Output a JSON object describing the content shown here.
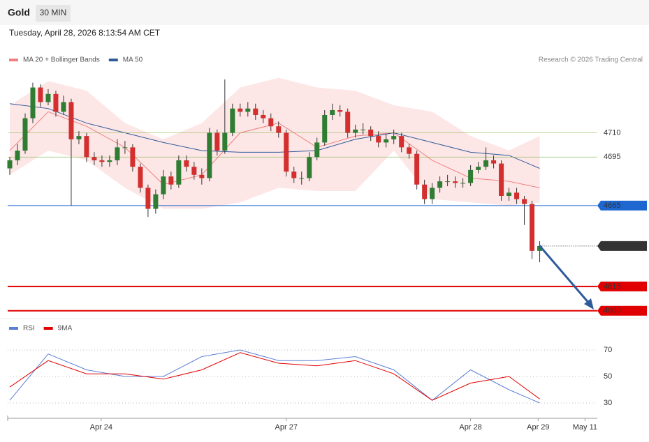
{
  "header": {
    "symbol": "Gold",
    "interval": "30 MIN",
    "timestamp": "Tuesday, April 28, 2026 8:13:54 AM CET",
    "credit": "Research © 2026 Trading Central"
  },
  "chart_data": [
    {
      "type": "candlestick",
      "legend": [
        {
          "name": "MA 20 + Bollinger Bands",
          "color": "#f08080"
        },
        {
          "name": "MA 50",
          "color": "#2f5b9a"
        }
      ],
      "x": [
        0,
        1,
        2,
        3,
        4,
        5,
        6,
        7,
        8,
        9,
        10,
        11,
        12,
        13,
        14,
        15,
        16,
        17,
        18,
        19,
        20,
        21,
        22,
        23,
        24,
        25,
        26,
        27,
        28,
        29,
        30,
        31,
        32,
        33,
        34,
        35,
        36,
        37,
        38,
        39,
        40,
        41,
        42,
        43,
        44,
        45,
        46,
        47,
        48,
        49,
        50,
        51,
        52,
        53,
        54,
        55,
        56,
        57,
        58,
        59,
        60,
        61,
        62,
        63,
        64,
        65,
        66,
        67,
        68,
        69
      ],
      "open": [
        4688,
        4693,
        4699,
        4719,
        4738,
        4729,
        4734,
        4723,
        4729,
        4706,
        4708,
        4695,
        4693,
        4692,
        4693,
        4701,
        4701,
        4689,
        4676,
        4663,
        4672,
        4683,
        4678,
        4693,
        4689,
        4684,
        4682,
        4710,
        4699,
        4710,
        4725,
        4723,
        4725,
        4721,
        4719,
        4714,
        4710,
        4686,
        4682,
        4682,
        4695,
        4704,
        4721,
        4724,
        4723,
        4710,
        4712,
        4712,
        4708,
        4704,
        4706,
        4708,
        4701,
        4697,
        4678,
        4669,
        4676,
        4680,
        4680,
        4679,
        4679,
        4687,
        4689,
        4693,
        4691,
        4671,
        4673,
        4669,
        4666,
        4637
      ],
      "high": [
        4695,
        4703,
        4722,
        4741,
        4740,
        4737,
        4736,
        4733,
        4731,
        4711,
        4710,
        4698,
        4696,
        4696,
        4706,
        4705,
        4703,
        4691,
        4678,
        4675,
        4687,
        4686,
        4696,
        4696,
        4692,
        4688,
        4713,
        4712,
        4743,
        4728,
        4728,
        4729,
        4728,
        4724,
        4722,
        4717,
        4712,
        4689,
        4686,
        4698,
        4707,
        4724,
        4728,
        4727,
        4725,
        4715,
        4716,
        4714,
        4711,
        4709,
        4712,
        4710,
        4703,
        4699,
        4681,
        4679,
        4683,
        4684,
        4683,
        4682,
        4690,
        4692,
        4701,
        4696,
        4693,
        4676,
        4676,
        4671,
        4668,
        4643
      ],
      "low": [
        4684,
        4690,
        4697,
        4716,
        4726,
        4727,
        4720,
        4721,
        4665,
        4703,
        4692,
        4690,
        4689,
        4689,
        4690,
        4697,
        4686,
        4673,
        4658,
        4660,
        4669,
        4675,
        4676,
        4686,
        4681,
        4678,
        4680,
        4696,
        4697,
        4708,
        4720,
        4720,
        4718,
        4716,
        4711,
        4707,
        4683,
        4679,
        4678,
        4680,
        4693,
        4702,
        4718,
        4720,
        4707,
        4707,
        4709,
        4705,
        4701,
        4701,
        4703,
        4698,
        4694,
        4675,
        4666,
        4666,
        4673,
        4677,
        4676,
        4676,
        4677,
        4685,
        4687,
        4688,
        4668,
        4668,
        4666,
        4653,
        4632,
        4630
      ],
      "close": [
        4693,
        4699,
        4719,
        4738,
        4729,
        4734,
        4723,
        4729,
        4706,
        4708,
        4695,
        4693,
        4692,
        4693,
        4701,
        4701,
        4689,
        4676,
        4663,
        4672,
        4683,
        4678,
        4693,
        4689,
        4684,
        4682,
        4710,
        4699,
        4710,
        4725,
        4723,
        4725,
        4721,
        4719,
        4714,
        4710,
        4686,
        4682,
        4682,
        4695,
        4704,
        4721,
        4724,
        4723,
        4710,
        4712,
        4712,
        4708,
        4704,
        4706,
        4708,
        4701,
        4697,
        4678,
        4669,
        4676,
        4680,
        4680,
        4679,
        4679,
        4687,
        4689,
        4693,
        4691,
        4671,
        4673,
        4669,
        4666,
        4637,
        4640
      ],
      "up_color": "#2e7d32",
      "down_color": "#d32f2f",
      "ma_x": [
        0,
        5,
        10,
        15,
        20,
        25,
        30,
        35,
        40,
        45,
        50,
        55,
        60,
        65,
        69
      ],
      "bb_upper": [
        4727,
        4742,
        4736,
        4716,
        4706,
        4716,
        4738,
        4744,
        4738,
        4736,
        4727,
        4723,
        4708,
        4699,
        4708
      ],
      "bb_lower": [
        4684,
        4699,
        4693,
        4676,
        4663,
        4663,
        4667,
        4676,
        4674,
        4674,
        4699,
        4669,
        4667,
        4665,
        4667
      ],
      "ma20": [
        4699,
        4723,
        4714,
        4701,
        4678,
        4684,
        4710,
        4716,
        4701,
        4708,
        4710,
        4693,
        4682,
        4680,
        4676
      ],
      "ma50": [
        4728,
        4725,
        4716,
        4710,
        4704,
        4699,
        4698,
        4698,
        4699,
        4706,
        4710,
        4704,
        4698,
        4696,
        4688
      ],
      "band_color": "#fde0e0",
      "levels": [
        {
          "value": 4710,
          "color": "#7cb342",
          "style": "text"
        },
        {
          "value": 4695,
          "color": "#7cb342",
          "style": "text"
        },
        {
          "value": 4665,
          "color": "#1e66d0",
          "style": "box"
        },
        {
          "value": 4640,
          "color": "#333333",
          "style": "box-dotted"
        },
        {
          "value": 4615,
          "color": "#e00000",
          "style": "box"
        },
        {
          "value": 4600,
          "color": "#e00000",
          "style": "box"
        }
      ],
      "xlim": [
        0,
        76.5
      ],
      "ylim": [
        4596,
        4749
      ]
    },
    {
      "type": "line",
      "series": [
        {
          "name": "RSI",
          "color": "#5b7fd6",
          "values": [
            32,
            67,
            55,
            50,
            50,
            65,
            70,
            62,
            62,
            65,
            55,
            32,
            55,
            40,
            30
          ]
        },
        {
          "name": "9MA",
          "color": "#e00000",
          "values": [
            42,
            62,
            52,
            52,
            48,
            55,
            68,
            60,
            58,
            62,
            52,
            32,
            45,
            50,
            33
          ]
        }
      ],
      "x": [
        0,
        5,
        10,
        15,
        20,
        25,
        30,
        35,
        40,
        45,
        50,
        55,
        60,
        65,
        69
      ],
      "xlim": [
        0,
        76.5
      ],
      "ylim": [
        20,
        90
      ],
      "yticks": [
        70,
        50,
        30
      ],
      "xticks": [
        {
          "value": 11.9,
          "label": "Apr 24"
        },
        {
          "value": 36,
          "label": "Apr 27"
        },
        {
          "value": 60,
          "label": "Apr 28"
        },
        {
          "value": 68.8,
          "label": "Apr 29"
        },
        {
          "value": 74.9,
          "label": "May 11"
        }
      ]
    }
  ]
}
